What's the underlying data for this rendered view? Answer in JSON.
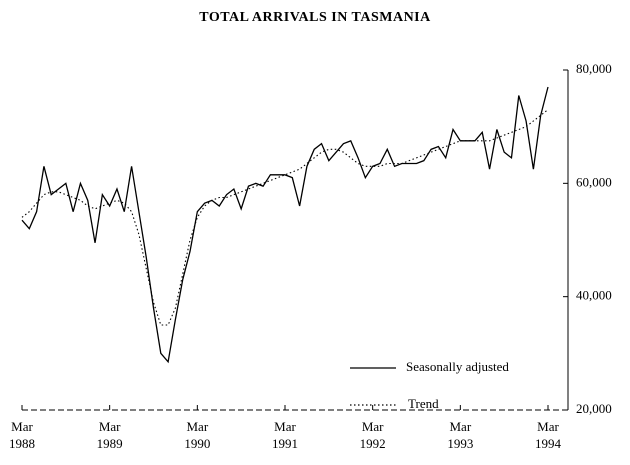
{
  "chart_data": {
    "type": "line",
    "title": "TOTAL ARRIVALS IN TASMANIA",
    "categories": [
      "Mar 1988",
      null,
      null,
      null,
      null,
      null,
      null,
      null,
      null,
      null,
      null,
      null,
      "Mar 1989",
      null,
      null,
      null,
      null,
      null,
      null,
      null,
      null,
      null,
      null,
      null,
      "Mar 1990",
      null,
      null,
      null,
      null,
      null,
      null,
      null,
      null,
      null,
      null,
      null,
      "Mar 1991",
      null,
      null,
      null,
      null,
      null,
      null,
      null,
      null,
      null,
      null,
      null,
      "Mar 1992",
      null,
      null,
      null,
      null,
      null,
      null,
      null,
      null,
      null,
      null,
      null,
      "Mar 1993",
      null,
      null,
      null,
      null,
      null,
      null,
      null,
      null,
      null,
      null,
      null,
      "Mar 1994"
    ],
    "series": [
      {
        "name": "Seasonally adjusted",
        "color": "#000000",
        "dash": "solid",
        "values": [
          53500,
          52000,
          55000,
          63000,
          58000,
          59000,
          60000,
          55000,
          60000,
          57000,
          49500,
          58000,
          56000,
          59000,
          55000,
          63000,
          55000,
          47000,
          38000,
          30000,
          28500,
          36000,
          43000,
          48000,
          55000,
          56500,
          57000,
          56000,
          58000,
          59000,
          55500,
          59500,
          60000,
          59500,
          61500,
          61500,
          61500,
          61000,
          56000,
          63000,
          66000,
          67000,
          64000,
          65500,
          67000,
          67500,
          64500,
          61000,
          63000,
          63500,
          66000,
          63000,
          63500,
          63500,
          63500,
          64000,
          66000,
          66500,
          64500,
          69500,
          67500,
          67500,
          67500,
          69000,
          62500,
          69500,
          65500,
          64500,
          75500,
          71000,
          62500,
          72000,
          77000
        ]
      },
      {
        "name": "Trend",
        "color": "#000000",
        "dash": "dotted",
        "values": [
          54000,
          55000,
          56500,
          58000,
          58500,
          58500,
          58000,
          57500,
          57000,
          56000,
          55500,
          56000,
          56500,
          57000,
          56500,
          55000,
          51000,
          45000,
          39000,
          35000,
          35000,
          38000,
          44000,
          50000,
          54000,
          56000,
          57000,
          57500,
          57500,
          58000,
          58500,
          59000,
          59500,
          60000,
          60500,
          61000,
          61500,
          62000,
          62500,
          63500,
          64500,
          65500,
          66000,
          66000,
          65500,
          64500,
          63500,
          63000,
          63000,
          63000,
          63500,
          63500,
          63500,
          64000,
          64500,
          65000,
          65500,
          66000,
          66500,
          67000,
          67500,
          67500,
          67500,
          67500,
          67500,
          68000,
          68500,
          69000,
          69500,
          70000,
          71000,
          72000,
          73000
        ]
      }
    ],
    "ylim": [
      20000,
      80000
    ],
    "yticks": [
      {
        "value": 20000,
        "label": "20,000"
      },
      {
        "value": 40000,
        "label": "40,000"
      },
      {
        "value": 60000,
        "label": "60,000"
      },
      {
        "value": 80000,
        "label": "80,000"
      }
    ],
    "y_axis_side": "right",
    "grid": false,
    "legend": "lower right"
  }
}
